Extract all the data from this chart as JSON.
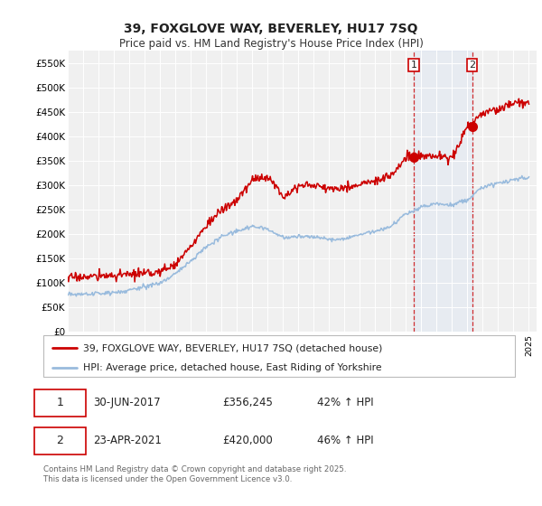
{
  "title_line1": "39, FOXGLOVE WAY, BEVERLEY, HU17 7SQ",
  "title_line2": "Price paid vs. HM Land Registry's House Price Index (HPI)",
  "background_color": "#ffffff",
  "plot_bg_color": "#f0f0f0",
  "red_color": "#cc0000",
  "blue_color": "#99bbdd",
  "vline_color": "#cc0000",
  "sale1_date": "30-JUN-2017",
  "sale1_price": "£356,245",
  "sale1_hpi": "42% ↑ HPI",
  "sale2_date": "23-APR-2021",
  "sale2_price": "£420,000",
  "sale2_hpi": "46% ↑ HPI",
  "legend_red": "39, FOXGLOVE WAY, BEVERLEY, HU17 7SQ (detached house)",
  "legend_blue": "HPI: Average price, detached house, East Riding of Yorkshire",
  "footer": "Contains HM Land Registry data © Crown copyright and database right 2025.\nThis data is licensed under the Open Government Licence v3.0.",
  "ylim": [
    0,
    575000
  ],
  "yticks": [
    0,
    50000,
    100000,
    150000,
    200000,
    250000,
    300000,
    350000,
    400000,
    450000,
    500000,
    550000
  ],
  "ytick_labels": [
    "£0",
    "£50K",
    "£100K",
    "£150K",
    "£200K",
    "£250K",
    "£300K",
    "£350K",
    "£400K",
    "£450K",
    "£500K",
    "£550K"
  ],
  "sale1_year": 2017.5,
  "sale2_year": 2021.3,
  "sale1_red_val": 356245,
  "sale2_red_val": 420000,
  "years": [
    1995,
    1996,
    1997,
    1998,
    1999,
    2000,
    2001,
    2002,
    2003,
    2004,
    2005,
    2006,
    2007,
    2008,
    2009,
    2010,
    2011,
    2012,
    2013,
    2014,
    2015,
    2016,
    2017,
    2018,
    2019,
    2020,
    2021,
    2022,
    2023,
    2024,
    2025
  ],
  "hpi_values": [
    75000,
    76000,
    77000,
    80000,
    84000,
    91000,
    100000,
    118000,
    145000,
    172000,
    195000,
    205000,
    215000,
    210000,
    192000,
    195000,
    193000,
    188000,
    190000,
    198000,
    205000,
    215000,
    240000,
    255000,
    262000,
    258000,
    270000,
    295000,
    305000,
    310000,
    315000
  ],
  "red_values": [
    110000,
    112000,
    113000,
    115000,
    116000,
    118000,
    122000,
    138000,
    172000,
    218000,
    248000,
    268000,
    310000,
    318000,
    278000,
    298000,
    300000,
    292000,
    295000,
    300000,
    308000,
    318000,
    356245,
    360000,
    358000,
    355000,
    420000,
    445000,
    455000,
    467000,
    470000
  ]
}
